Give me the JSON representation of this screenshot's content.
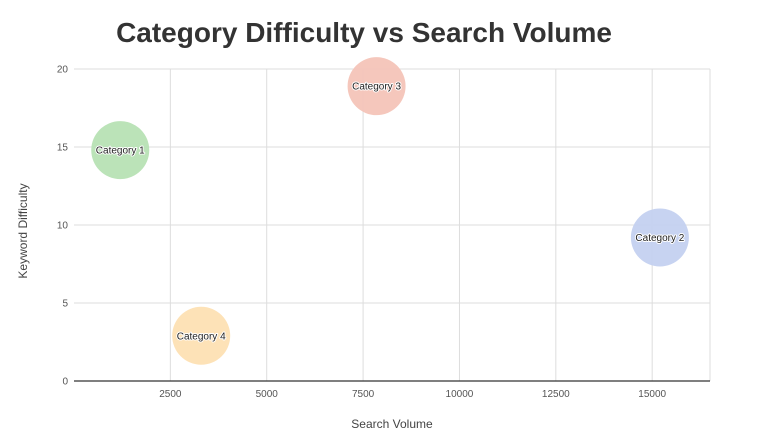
{
  "chart_data": {
    "type": "scatter",
    "title": "Category Difficulty vs Search Volume",
    "xlabel": "Search Volume",
    "ylabel": "Keyword Difficulty",
    "xlim": [
      0,
      16500
    ],
    "ylim": [
      0,
      20
    ],
    "x_ticks": [
      2500,
      5000,
      7500,
      10000,
      12500,
      15000
    ],
    "y_ticks": [
      0,
      5,
      10,
      15,
      20
    ],
    "grid": true,
    "points": [
      {
        "label": "Category 1",
        "x": 1200,
        "y": 14.8,
        "color": "#b7e1b4"
      },
      {
        "label": "Category 2",
        "x": 15200,
        "y": 9.2,
        "color": "#c4d1f0"
      },
      {
        "label": "Category 3",
        "x": 7850,
        "y": 18.9,
        "color": "#f4c4b8"
      },
      {
        "label": "Category 4",
        "x": 3300,
        "y": 2.9,
        "color": "#fde0b3"
      }
    ]
  }
}
